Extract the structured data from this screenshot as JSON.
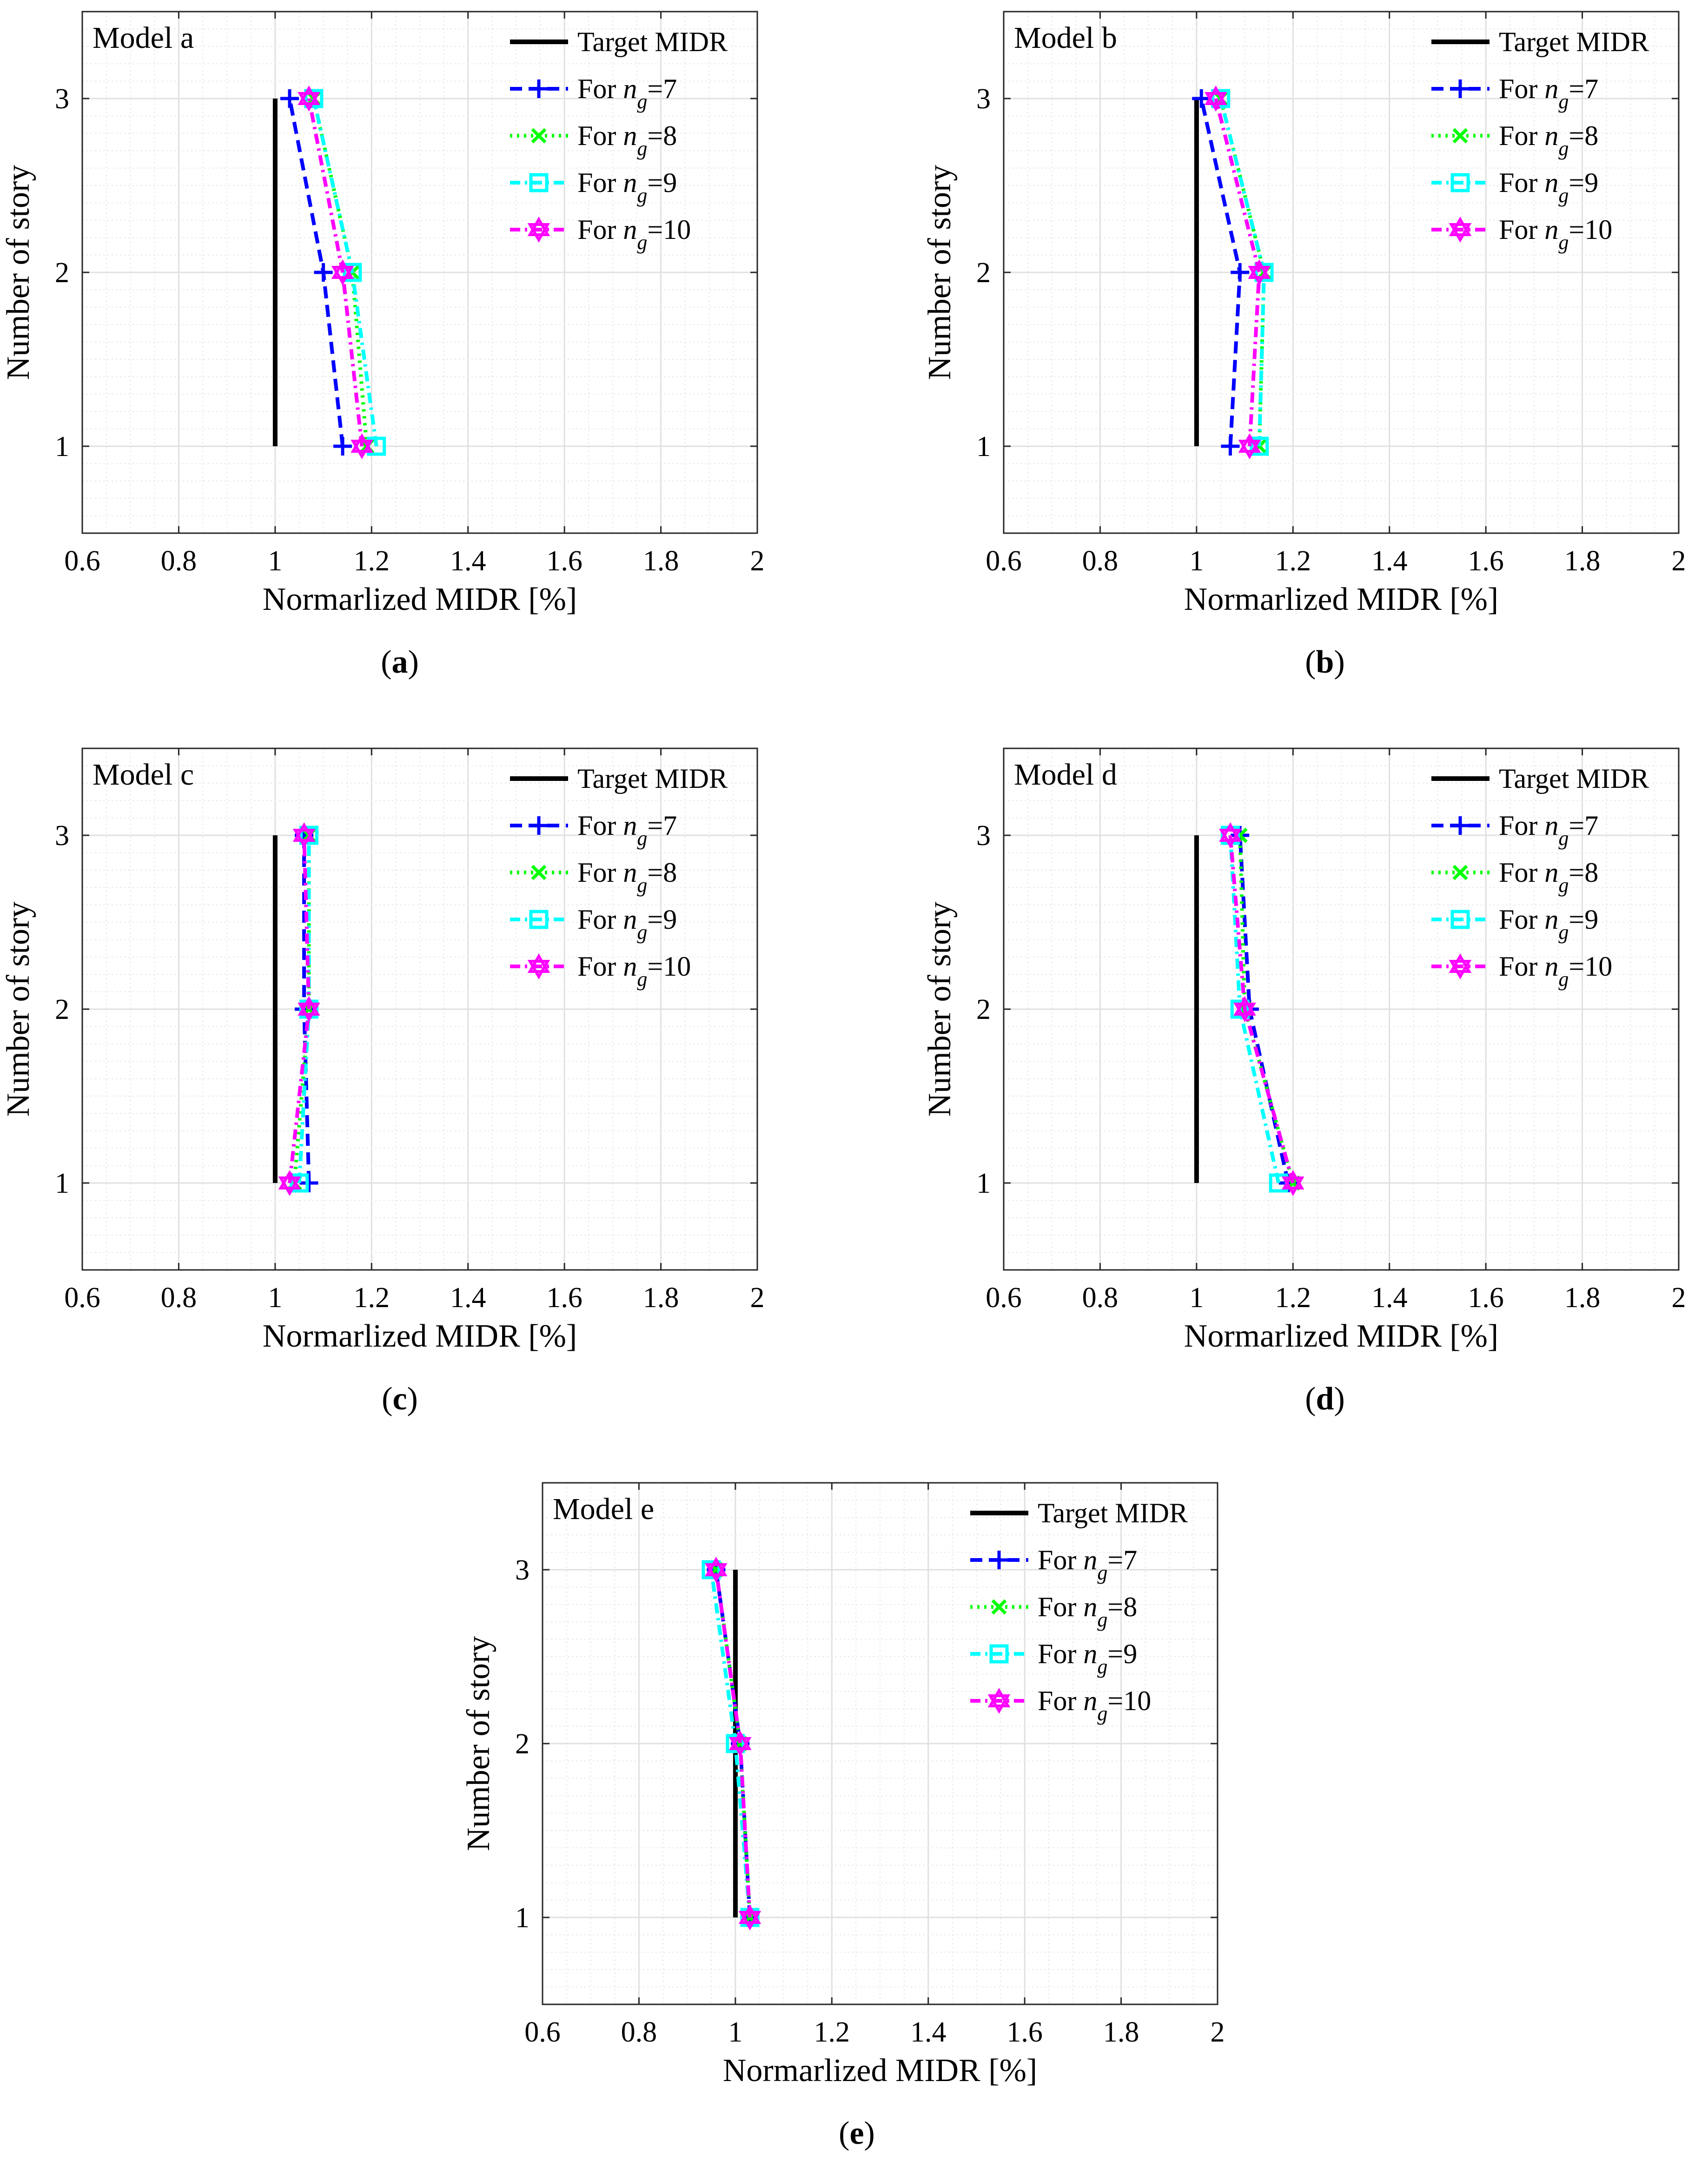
{
  "figure": {
    "panels": [
      {
        "id": "a",
        "caption_letter": "a"
      },
      {
        "id": "b",
        "caption_letter": "b"
      },
      {
        "id": "c",
        "caption_letter": "c"
      },
      {
        "id": "d",
        "caption_letter": "d"
      },
      {
        "id": "e",
        "caption_letter": "e"
      }
    ]
  },
  "chart_data": [
    {
      "type": "line",
      "title": "Model a",
      "xlabel": "Normarlized MIDR [%]",
      "ylabel": "Number of story",
      "xlim": [
        0.6,
        2
      ],
      "ylim": [
        0.5,
        3.5
      ],
      "xticks": [
        "0.6",
        "0.8",
        "1",
        "1.2",
        "1.4",
        "1.6",
        "1.8",
        "2"
      ],
      "yticks": [
        "1",
        "2",
        "3"
      ],
      "grid": true,
      "legend_position": "top-right",
      "y": [
        1,
        2,
        3
      ],
      "series": [
        {
          "name": "Target MIDR",
          "legend_prefix": "Target MIDR",
          "legend_sub": "",
          "legend_suffix": "",
          "color": "#000000",
          "dash": "solid",
          "marker": "none",
          "x": [
            1.0,
            1.0,
            1.0
          ]
        },
        {
          "name": "For n_g=7",
          "legend_prefix": "For n",
          "legend_sub": "g",
          "legend_suffix": "=7",
          "color": "#0000ff",
          "dash": "dash",
          "marker": "plus",
          "x": [
            1.14,
            1.1,
            1.03
          ]
        },
        {
          "name": "For n_g=8",
          "legend_prefix": "For n",
          "legend_sub": "g",
          "legend_suffix": "=8",
          "color": "#00ff00",
          "dash": "dot",
          "marker": "x",
          "x": [
            1.19,
            1.16,
            1.08
          ]
        },
        {
          "name": "For n_g=9",
          "legend_prefix": "For n",
          "legend_sub": "g",
          "legend_suffix": "=9",
          "color": "#00ffff",
          "dash": "dashdot",
          "marker": "square",
          "x": [
            1.21,
            1.16,
            1.08
          ]
        },
        {
          "name": "For n_g=10",
          "legend_prefix": "For n",
          "legend_sub": "g",
          "legend_suffix": "=10",
          "color": "#ff00ff",
          "dash": "dashdot",
          "marker": "hexagram",
          "x": [
            1.18,
            1.14,
            1.07
          ]
        }
      ]
    },
    {
      "type": "line",
      "title": "Model b",
      "xlabel": "Normarlized MIDR [%]",
      "ylabel": "Number of story",
      "xlim": [
        0.6,
        2
      ],
      "ylim": [
        0.5,
        3.5
      ],
      "xticks": [
        "0.6",
        "0.8",
        "1",
        "1.2",
        "1.4",
        "1.6",
        "1.8",
        "2"
      ],
      "yticks": [
        "1",
        "2",
        "3"
      ],
      "grid": true,
      "legend_position": "top-right",
      "y": [
        1,
        2,
        3
      ],
      "series": [
        {
          "name": "Target MIDR",
          "legend_prefix": "Target MIDR",
          "legend_sub": "",
          "legend_suffix": "",
          "color": "#000000",
          "dash": "solid",
          "marker": "none",
          "x": [
            1.0,
            1.0,
            1.0
          ]
        },
        {
          "name": "For n_g=7",
          "legend_prefix": "For n",
          "legend_sub": "g",
          "legend_suffix": "=7",
          "color": "#0000ff",
          "dash": "dash",
          "marker": "plus",
          "x": [
            1.07,
            1.09,
            1.01
          ]
        },
        {
          "name": "For n_g=8",
          "legend_prefix": "For n",
          "legend_sub": "g",
          "legend_suffix": "=8",
          "color": "#00ff00",
          "dash": "dot",
          "marker": "x",
          "x": [
            1.13,
            1.14,
            1.05
          ]
        },
        {
          "name": "For n_g=9",
          "legend_prefix": "For n",
          "legend_sub": "g",
          "legend_suffix": "=9",
          "color": "#00ffff",
          "dash": "dashdot",
          "marker": "square",
          "x": [
            1.13,
            1.14,
            1.05
          ]
        },
        {
          "name": "For n_g=10",
          "legend_prefix": "For n",
          "legend_sub": "g",
          "legend_suffix": "=10",
          "color": "#ff00ff",
          "dash": "dashdot",
          "marker": "hexagram",
          "x": [
            1.11,
            1.13,
            1.04
          ]
        }
      ]
    },
    {
      "type": "line",
      "title": "Model c",
      "xlabel": "Normarlized MIDR [%]",
      "ylabel": "Number of story",
      "xlim": [
        0.6,
        2
      ],
      "ylim": [
        0.5,
        3.5
      ],
      "xticks": [
        "0.6",
        "0.8",
        "1",
        "1.2",
        "1.4",
        "1.6",
        "1.8",
        "2"
      ],
      "yticks": [
        "1",
        "2",
        "3"
      ],
      "grid": true,
      "legend_position": "top-right",
      "y": [
        1,
        2,
        3
      ],
      "series": [
        {
          "name": "Target MIDR",
          "legend_prefix": "Target MIDR",
          "legend_sub": "",
          "legend_suffix": "",
          "color": "#000000",
          "dash": "solid",
          "marker": "none",
          "x": [
            1.0,
            1.0,
            1.0
          ]
        },
        {
          "name": "For n_g=7",
          "legend_prefix": "For n",
          "legend_sub": "g",
          "legend_suffix": "=7",
          "color": "#0000ff",
          "dash": "dash",
          "marker": "plus",
          "x": [
            1.07,
            1.06,
            1.06
          ]
        },
        {
          "name": "For n_g=8",
          "legend_prefix": "For n",
          "legend_sub": "g",
          "legend_suffix": "=8",
          "color": "#00ff00",
          "dash": "dot",
          "marker": "x",
          "x": [
            1.04,
            1.07,
            1.07
          ]
        },
        {
          "name": "For n_g=9",
          "legend_prefix": "For n",
          "legend_sub": "g",
          "legend_suffix": "=9",
          "color": "#00ffff",
          "dash": "dashdot",
          "marker": "square",
          "x": [
            1.05,
            1.07,
            1.07
          ]
        },
        {
          "name": "For n_g=10",
          "legend_prefix": "For n",
          "legend_sub": "g",
          "legend_suffix": "=10",
          "color": "#ff00ff",
          "dash": "dashdot",
          "marker": "hexagram",
          "x": [
            1.03,
            1.07,
            1.06
          ]
        }
      ]
    },
    {
      "type": "line",
      "title": "Model d",
      "xlabel": "Normarlized MIDR [%]",
      "ylabel": "Number of story",
      "xlim": [
        0.6,
        2
      ],
      "ylim": [
        0.5,
        3.5
      ],
      "xticks": [
        "0.6",
        "0.8",
        "1",
        "1.2",
        "1.4",
        "1.6",
        "1.8",
        "2"
      ],
      "yticks": [
        "1",
        "2",
        "3"
      ],
      "grid": true,
      "legend_position": "top-right",
      "y": [
        1,
        2,
        3
      ],
      "series": [
        {
          "name": "Target MIDR",
          "legend_prefix": "Target MIDR",
          "legend_sub": "",
          "legend_suffix": "",
          "color": "#000000",
          "dash": "solid",
          "marker": "none",
          "x": [
            1.0,
            1.0,
            1.0
          ]
        },
        {
          "name": "For n_g=7",
          "legend_prefix": "For n",
          "legend_sub": "g",
          "legend_suffix": "=7",
          "color": "#0000ff",
          "dash": "dash",
          "marker": "plus",
          "x": [
            1.19,
            1.11,
            1.09
          ]
        },
        {
          "name": "For n_g=8",
          "legend_prefix": "For n",
          "legend_sub": "g",
          "legend_suffix": "=8",
          "color": "#00ff00",
          "dash": "dot",
          "marker": "x",
          "x": [
            1.2,
            1.1,
            1.09
          ]
        },
        {
          "name": "For n_g=9",
          "legend_prefix": "For n",
          "legend_sub": "g",
          "legend_suffix": "=9",
          "color": "#00ffff",
          "dash": "dashdot",
          "marker": "square",
          "x": [
            1.17,
            1.09,
            1.07
          ]
        },
        {
          "name": "For n_g=10",
          "legend_prefix": "For n",
          "legend_sub": "g",
          "legend_suffix": "=10",
          "color": "#ff00ff",
          "dash": "dashdot",
          "marker": "hexagram",
          "x": [
            1.2,
            1.1,
            1.07
          ]
        }
      ]
    },
    {
      "type": "line",
      "title": "Model e",
      "xlabel": "Normarlized MIDR [%]",
      "ylabel": "Number of story",
      "xlim": [
        0.6,
        2
      ],
      "ylim": [
        0.5,
        3.5
      ],
      "xticks": [
        "0.6",
        "0.8",
        "1",
        "1.2",
        "1.4",
        "1.6",
        "1.8",
        "2"
      ],
      "yticks": [
        "1",
        "2",
        "3"
      ],
      "grid": true,
      "legend_position": "top-right",
      "y": [
        1,
        2,
        3
      ],
      "series": [
        {
          "name": "Target MIDR",
          "legend_prefix": "Target MIDR",
          "legend_sub": "",
          "legend_suffix": "",
          "color": "#000000",
          "dash": "solid",
          "marker": "none",
          "x": [
            1.0,
            1.0,
            1.0
          ]
        },
        {
          "name": "For n_g=7",
          "legend_prefix": "For n",
          "legend_sub": "g",
          "legend_suffix": "=7",
          "color": "#0000ff",
          "dash": "dash",
          "marker": "plus",
          "x": [
            1.03,
            1.01,
            0.96
          ]
        },
        {
          "name": "For n_g=8",
          "legend_prefix": "For n",
          "legend_sub": "g",
          "legend_suffix": "=8",
          "color": "#00ff00",
          "dash": "dot",
          "marker": "x",
          "x": [
            1.03,
            1.01,
            0.96
          ]
        },
        {
          "name": "For n_g=9",
          "legend_prefix": "For n",
          "legend_sub": "g",
          "legend_suffix": "=9",
          "color": "#00ffff",
          "dash": "dashdot",
          "marker": "square",
          "x": [
            1.03,
            1.0,
            0.95
          ]
        },
        {
          "name": "For n_g=10",
          "legend_prefix": "For n",
          "legend_sub": "g",
          "legend_suffix": "=10",
          "color": "#ff00ff",
          "dash": "dashdot",
          "marker": "hexagram",
          "x": [
            1.03,
            1.01,
            0.96
          ]
        }
      ]
    }
  ]
}
